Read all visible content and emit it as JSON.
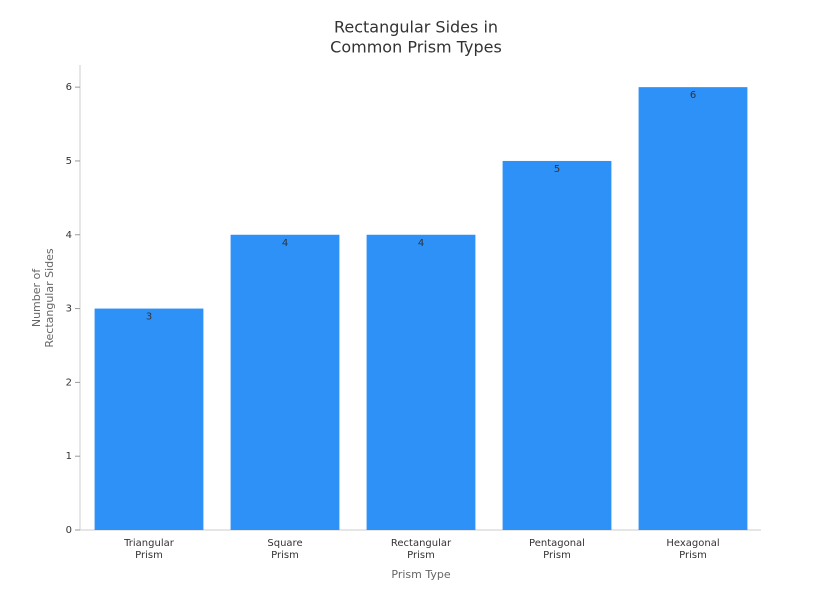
{
  "chart_data": {
    "type": "bar",
    "title": [
      "Rectangular Sides in",
      "Common Prism Types"
    ],
    "xlabel": "Prism Type",
    "ylabel": [
      "Number of",
      "Rectangular Sides"
    ],
    "categories": [
      [
        "Triangular",
        "Prism"
      ],
      [
        "Square",
        "Prism"
      ],
      [
        "Rectangular",
        "Prism"
      ],
      [
        "Pentagonal",
        "Prism"
      ],
      [
        "Hexagonal",
        "Prism"
      ]
    ],
    "values": [
      3,
      4,
      4,
      5,
      6
    ],
    "color": "#2e91f8",
    "ylim": [
      0,
      6.3
    ],
    "yticks": [
      0,
      1,
      2,
      3,
      4,
      5,
      6
    ],
    "grid": false
  }
}
